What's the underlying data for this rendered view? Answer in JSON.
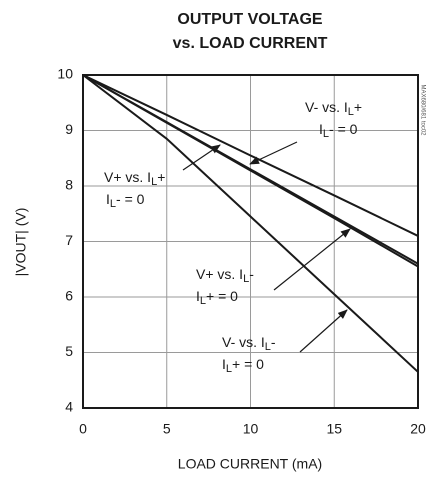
{
  "chart_data": {
    "type": "line",
    "title": [
      "OUTPUT VOLTAGE",
      "vs. LOAD CURRENT"
    ],
    "x_label": "LOAD CURRENT (mA)",
    "y_label": "|VOUT| (V)",
    "watermark": "MAX680/681 toc02",
    "x": [
      0,
      5,
      10,
      15,
      20
    ],
    "xlim": [
      0,
      20
    ],
    "xticks": [
      0,
      5,
      10,
      15,
      20
    ],
    "ylim": [
      4,
      10
    ],
    "yticks": [
      4,
      5,
      6,
      7,
      8,
      9,
      10
    ],
    "grid": true,
    "series": [
      {
        "color": "#1a1a1a",
        "values": [
          10,
          9.28,
          8.55,
          7.83,
          7.1
        ]
      },
      {
        "color": "#1a1a1a",
        "values": [
          10,
          9.15,
          8.3,
          7.45,
          6.6
        ]
      },
      {
        "color": "#1a1a1a",
        "values": [
          10,
          9.14,
          8.28,
          7.42,
          6.55
        ]
      },
      {
        "color": "#1a1a1a",
        "values": [
          10,
          8.85,
          7.45,
          6.05,
          4.65
        ]
      }
    ],
    "annotations": [
      {
        "lines": [
          [
            {
              "t": "V- vs. I"
            },
            {
              "t": "L",
              "sub": true
            },
            {
              "t": "+"
            }
          ],
          [
            {
              "t": "I"
            },
            {
              "t": "L",
              "sub": true
            },
            {
              "t": "- = 0"
            }
          ]
        ]
      },
      {
        "lines": [
          [
            {
              "t": "V+ vs. I"
            },
            {
              "t": "L",
              "sub": true
            },
            {
              "t": "+"
            }
          ],
          [
            {
              "t": "I"
            },
            {
              "t": "L",
              "sub": true
            },
            {
              "t": "- = 0"
            }
          ]
        ]
      },
      {
        "lines": [
          [
            {
              "t": "V+ vs. I"
            },
            {
              "t": "L",
              "sub": true
            },
            {
              "t": "-"
            }
          ],
          [
            {
              "t": "I"
            },
            {
              "t": "L",
              "sub": true
            },
            {
              "t": "+ = 0"
            }
          ]
        ]
      },
      {
        "lines": [
          [
            {
              "t": "V- vs. I"
            },
            {
              "t": "L",
              "sub": true
            },
            {
              "t": "-"
            }
          ],
          [
            {
              "t": "I"
            },
            {
              "t": "L",
              "sub": true
            },
            {
              "t": "+ = 0"
            }
          ]
        ]
      }
    ]
  }
}
